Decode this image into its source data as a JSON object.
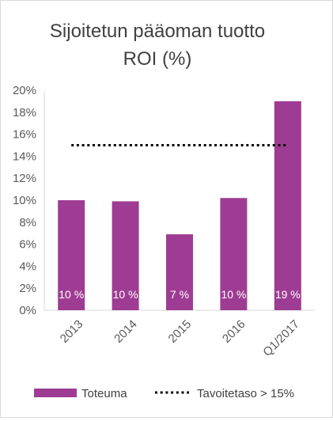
{
  "chart_data": {
    "type": "bar",
    "title_line1": "Sijoitetun pääoman tuotto",
    "title_line2": "ROI (%)",
    "categories": [
      "2013",
      "2014",
      "2015",
      "2016",
      "Q1/2017"
    ],
    "series": [
      {
        "name": "Toteuma",
        "values": [
          10.0,
          9.9,
          6.9,
          10.2,
          19.0
        ],
        "labels": [
          "10 %",
          "10 %",
          "7 %",
          "10 %",
          "19 %"
        ],
        "color": "#9e3c93"
      }
    ],
    "target": {
      "name": "Tavoitetaso > 15%",
      "value": 15,
      "color": "#000000"
    },
    "y_ticks": [
      "0%",
      "2%",
      "4%",
      "6%",
      "8%",
      "10%",
      "12%",
      "14%",
      "16%",
      "18%",
      "20%"
    ],
    "ylim": [
      0,
      20
    ],
    "grid": false,
    "legend_position": "bottom"
  }
}
